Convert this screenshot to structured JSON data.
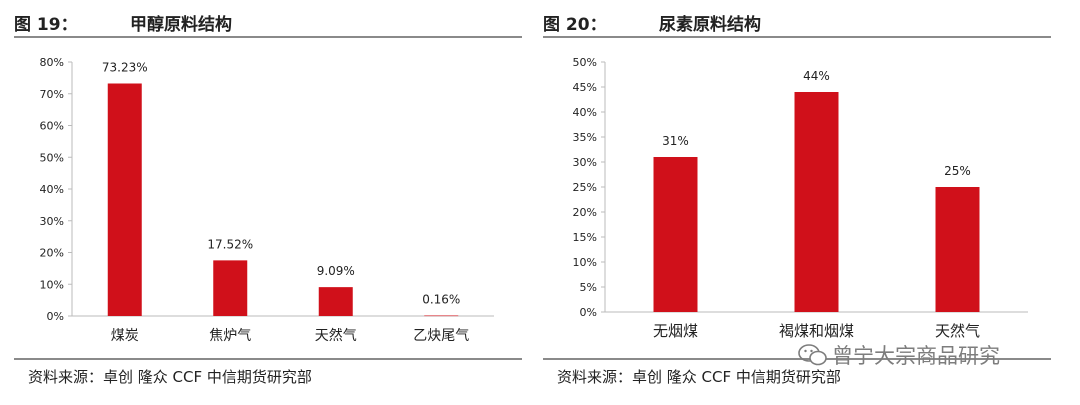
{
  "left": {
    "figure_number": "图 19：",
    "figure_title": "甲醇原料结构",
    "source": "资料来源：卓创 隆众 CCF 中信期货研究部"
  },
  "right": {
    "figure_number": "图 20：",
    "figure_title": "尿素原料结构",
    "source": "资料来源：卓创 隆众 CCF 中信期货研究部"
  },
  "watermark": "曾宁大宗商品研究",
  "colors": {
    "bar": "#d0101a",
    "axis": "#bbbbbb",
    "text": "#222222"
  },
  "chart_data": [
    {
      "type": "bar",
      "title": "甲醇原料结构",
      "categories": [
        "煤炭",
        "焦炉气",
        "天然气",
        "乙炔尾气"
      ],
      "values": [
        73.23,
        17.52,
        9.09,
        0.16
      ],
      "data_labels": [
        "73.23%",
        "17.52%",
        "9.09%",
        "0.16%"
      ],
      "y_ticks": [
        "0%",
        "10%",
        "20%",
        "30%",
        "40%",
        "50%",
        "60%",
        "70%",
        "80%"
      ],
      "ylim": [
        0,
        80
      ],
      "grid": false,
      "legend": "none"
    },
    {
      "type": "bar",
      "title": "尿素原料结构",
      "categories": [
        "无烟煤",
        "褐煤和烟煤",
        "天然气"
      ],
      "values": [
        31,
        44,
        25
      ],
      "data_labels": [
        "31%",
        "44%",
        "25%"
      ],
      "y_ticks": [
        "0%",
        "5%",
        "10%",
        "15%",
        "20%",
        "25%",
        "30%",
        "35%",
        "40%",
        "45%",
        "50%"
      ],
      "ylim": [
        0,
        50
      ],
      "grid": false,
      "legend": "none"
    }
  ]
}
